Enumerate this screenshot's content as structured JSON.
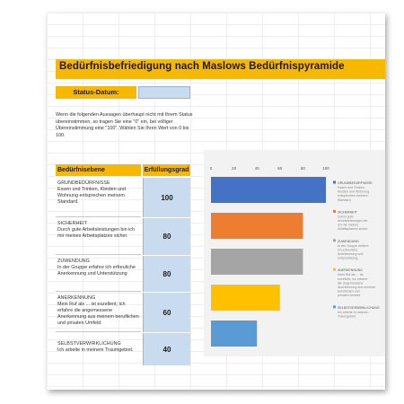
{
  "title": "Bedürfnisbefriedigung nach Maslows Bedürfnispyramide",
  "status": {
    "label": "Status-Datum:",
    "value": ""
  },
  "intro": "Wenn die folgenden Aussagen überhaupt nicht mit Ihrem Status übereinstimmen, so tragen Sie eine \"0\" ein, bei völliger Übereinstimmung eine \"100\". Wählen Sie Ihren Wert von 0 bis 100.",
  "table": {
    "header_level": "Bedürfnisebene",
    "header_degree": "Erfüllungsgrad",
    "rows": [
      {
        "name": "GRUNDBEDÜRFNISSE",
        "desc": "Essen und Trinken, Kleiden und Wohnung entsprechen meinem Standard.",
        "value": "100"
      },
      {
        "name": "SICHERHEIT",
        "desc": "Durch gute Arbeitsleistungen bin ich mir meines Arbeitsplatzes sicher.",
        "value": "80"
      },
      {
        "name": "ZUWENDUNG",
        "desc": "In der Gruppe erfahre ich erfreuliche Anerkennung und Unterstützung",
        "value": "80"
      },
      {
        "name": "ANERKENNUNG",
        "desc": "Mein Ruf als ... ist exzellent; ich erfahre die angemessene Anerkennung aus meinem beruflichen und privaten Umfeld.",
        "value": "60"
      },
      {
        "name": "SELBSTVERWIRKLICHUNG",
        "desc": "Ich arbeite in meinem Traumgebiet.",
        "value": "40"
      }
    ]
  },
  "chart_data": {
    "type": "bar",
    "orientation": "horizontal",
    "categories": [
      "GRUNDBEDÜRFNISSE",
      "SICHERHEIT",
      "ZUWENDUNG",
      "ANERKENNUNG",
      "SELBSTVERWIRKLICHUNG"
    ],
    "values": [
      100,
      80,
      80,
      60,
      40
    ],
    "colors": [
      "#4472c4",
      "#ed7d31",
      "#a5a5a5",
      "#ffc000",
      "#5b9bd5"
    ],
    "xlim": [
      0,
      100
    ],
    "ticks": [
      "0",
      "20",
      "40",
      "60",
      "80",
      "100"
    ],
    "legend_position": "right",
    "legend": [
      {
        "name": "GRUNDBEDÜRFNISSE",
        "desc": "Essen und Trinken, Kleiden und Wohnung entsprechen meinem Standard."
      },
      {
        "name": "SICHERHEIT",
        "desc": "Durch gute Arbeitsleistungen bin ich mir meines Arbeitsplatzes sicher."
      },
      {
        "name": "ZUWENDUNG",
        "desc": "In der Gruppe erfahre ich erfreuliche Anerkennung und Unterstützung."
      },
      {
        "name": "ANERKENNUNG",
        "desc": "Mein Ruf als ... ist exzellent; ich erfahre die angemessene Anerkennung aus meinem beruflichen und privaten Umfeld."
      },
      {
        "name": "SELBSTVERWIRKLICHUNG",
        "desc": "Ich arbeite in meinem Traumgebiet."
      }
    ]
  }
}
